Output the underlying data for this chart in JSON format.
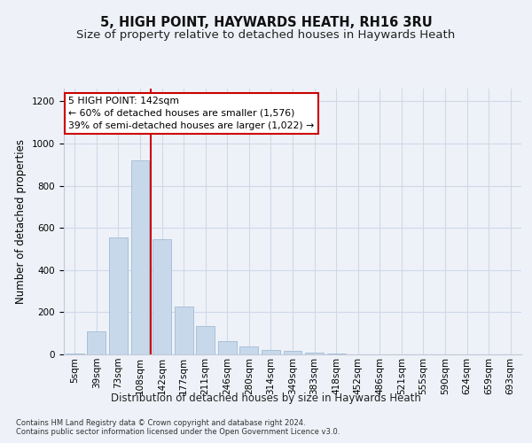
{
  "title1": "5, HIGH POINT, HAYWARDS HEATH, RH16 3RU",
  "title2": "Size of property relative to detached houses in Haywards Heath",
  "xlabel": "Distribution of detached houses by size in Haywards Heath",
  "ylabel": "Number of detached properties",
  "annotation_line1": "5 HIGH POINT: 142sqm",
  "annotation_line2": "← 60% of detached houses are smaller (1,576)",
  "annotation_line3": "39% of semi-detached houses are larger (1,022) →",
  "footnote1": "Contains HM Land Registry data © Crown copyright and database right 2024.",
  "footnote2": "Contains public sector information licensed under the Open Government Licence v3.0.",
  "bar_labels": [
    "5sqm",
    "39sqm",
    "73sqm",
    "108sqm",
    "142sqm",
    "177sqm",
    "211sqm",
    "246sqm",
    "280sqm",
    "314sqm",
    "349sqm",
    "383sqm",
    "418sqm",
    "452sqm",
    "486sqm",
    "521sqm",
    "555sqm",
    "590sqm",
    "624sqm",
    "659sqm",
    "693sqm"
  ],
  "bar_values": [
    5,
    110,
    555,
    920,
    545,
    225,
    135,
    65,
    38,
    20,
    15,
    8,
    3,
    1,
    0,
    0,
    0,
    0,
    0,
    0,
    0
  ],
  "bar_color": "#c8d8eb",
  "bar_edge_color": "#a8c0d8",
  "red_line_x": 3.5,
  "red_line_color": "#cc0000",
  "ylim": [
    0,
    1260
  ],
  "yticks": [
    0,
    200,
    400,
    600,
    800,
    1000,
    1200
  ],
  "grid_color": "#d0d8e8",
  "background_color": "#eef2f8",
  "title_fontsize": 10.5,
  "subtitle_fontsize": 9.5,
  "xlabel_fontsize": 8.5,
  "ylabel_fontsize": 8.5,
  "tick_fontsize": 7.5,
  "annotation_fontsize": 7.8,
  "footnote_fontsize": 6.0
}
